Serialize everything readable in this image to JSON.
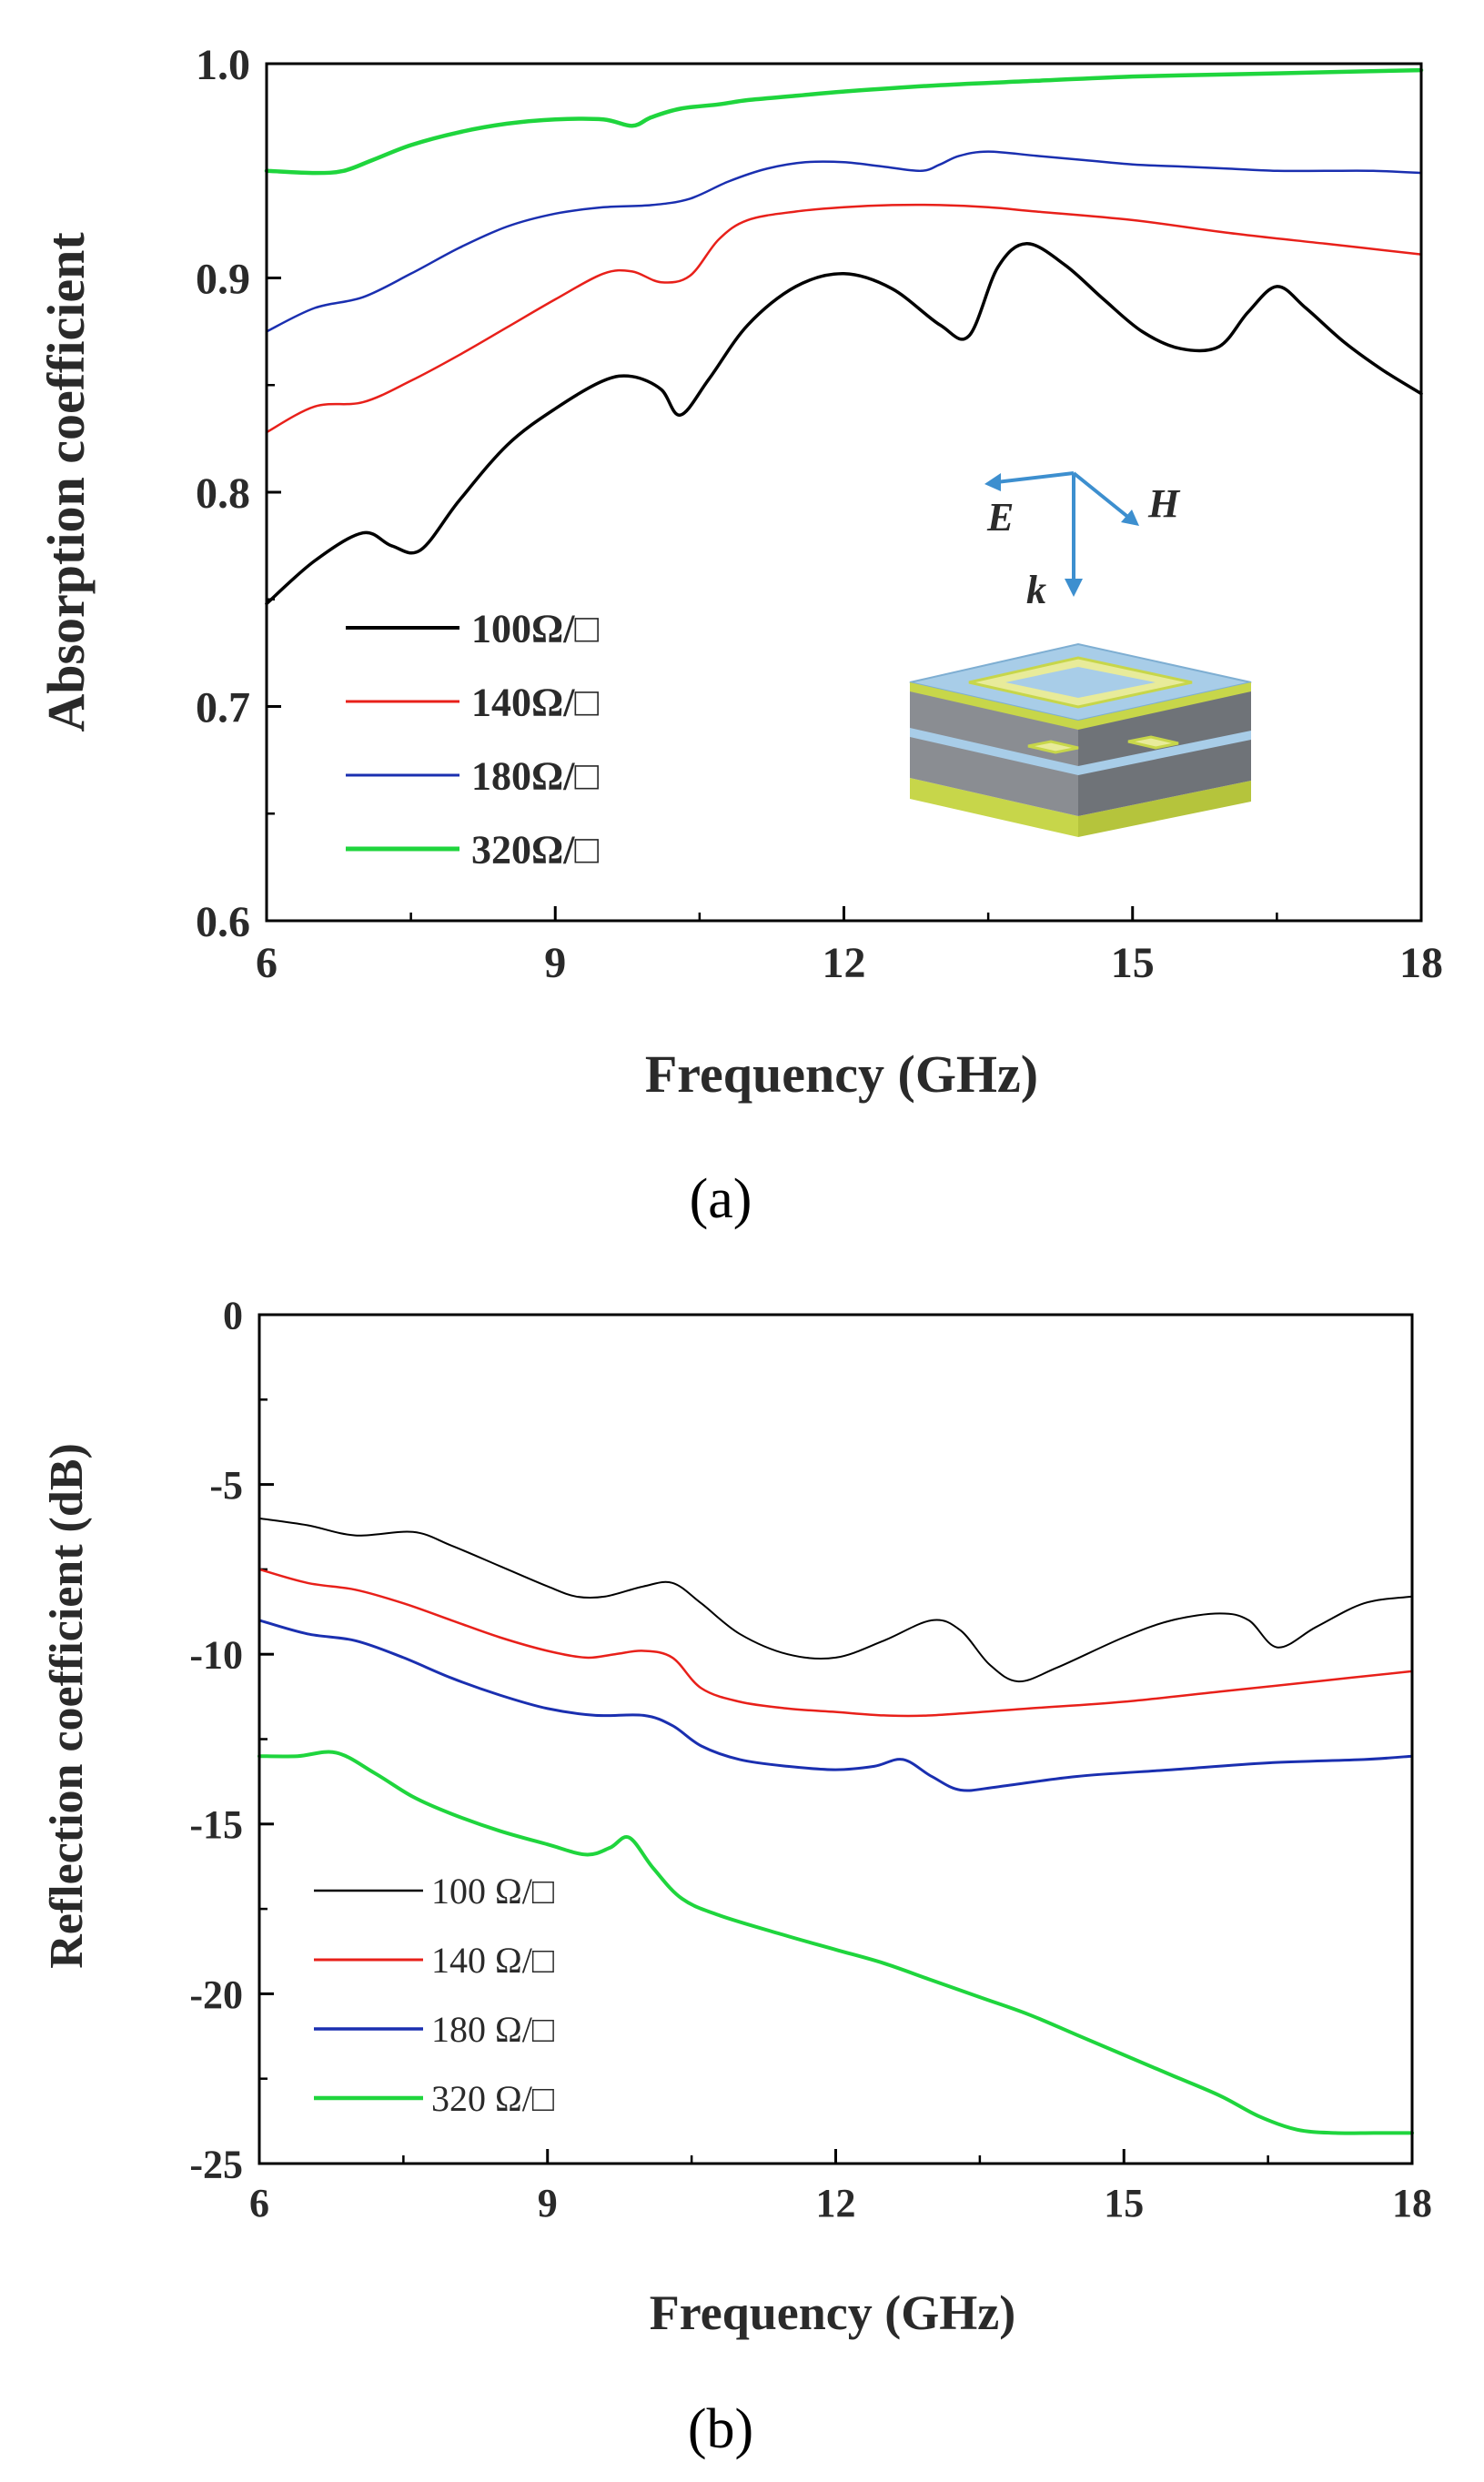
{
  "chart_data": [
    {
      "type": "line",
      "panel_label": "(a)",
      "title": "",
      "xlabel": "Frequency (GHz)",
      "ylabel": "Absorption coefficient",
      "xlim": [
        6,
        18
      ],
      "ylim": [
        0.6,
        1.0
      ],
      "xticks": [
        "6",
        "9",
        "12",
        "15",
        "18"
      ],
      "yticks": [
        "0.6",
        "0.7",
        "0.8",
        "0.9",
        "1.0"
      ],
      "legend_position": "bottom-left",
      "series": [
        {
          "name": "100Ω/□",
          "color": "#000000",
          "x": [
            6,
            6.5,
            7,
            7.3,
            7.6,
            8,
            8.5,
            9,
            9.5,
            9.8,
            10.1,
            10.3,
            10.6,
            11,
            11.5,
            12,
            12.5,
            13,
            13.3,
            13.6,
            13.9,
            14.3,
            14.7,
            15.1,
            15.5,
            15.9,
            16.2,
            16.5,
            16.8,
            17.2,
            17.6,
            18
          ],
          "values": [
            0.748,
            0.768,
            0.781,
            0.775,
            0.773,
            0.796,
            0.822,
            0.839,
            0.852,
            0.854,
            0.848,
            0.836,
            0.853,
            0.878,
            0.896,
            0.902,
            0.895,
            0.878,
            0.873,
            0.905,
            0.916,
            0.906,
            0.89,
            0.875,
            0.867,
            0.868,
            0.884,
            0.896,
            0.886,
            0.87,
            0.857,
            0.846
          ]
        },
        {
          "name": "140Ω/□",
          "color": "#e8201a",
          "x": [
            6,
            6.5,
            7,
            7.5,
            8,
            8.5,
            9,
            9.5,
            9.8,
            10.1,
            10.4,
            10.7,
            11,
            11.5,
            12,
            12.5,
            13,
            13.5,
            14,
            15,
            16,
            17,
            18
          ],
          "values": [
            0.828,
            0.84,
            0.842,
            0.852,
            0.864,
            0.877,
            0.89,
            0.902,
            0.903,
            0.898,
            0.901,
            0.918,
            0.927,
            0.931,
            0.933,
            0.934,
            0.934,
            0.933,
            0.931,
            0.927,
            0.921,
            0.916,
            0.911
          ]
        },
        {
          "name": "180Ω/□",
          "color": "#1a2fb0",
          "x": [
            6,
            6.5,
            7,
            7.5,
            8,
            8.5,
            9,
            9.5,
            10,
            10.4,
            10.8,
            11.2,
            11.6,
            12,
            12.4,
            12.8,
            13,
            13.2,
            13.5,
            14,
            14.5,
            15,
            15.5,
            16,
            16.5,
            17,
            17.5,
            18
          ],
          "values": [
            0.875,
            0.886,
            0.891,
            0.902,
            0.914,
            0.924,
            0.93,
            0.933,
            0.934,
            0.937,
            0.945,
            0.951,
            0.954,
            0.954,
            0.952,
            0.95,
            0.953,
            0.957,
            0.959,
            0.957,
            0.955,
            0.953,
            0.952,
            0.951,
            0.95,
            0.95,
            0.95,
            0.949
          ]
        },
        {
          "name": "320Ω/□",
          "color": "#1fd53d",
          "x": [
            6,
            6.5,
            6.8,
            7.1,
            7.5,
            8,
            8.5,
            9,
            9.5,
            9.8,
            10,
            10.3,
            10.7,
            11,
            11.5,
            12,
            13,
            14,
            15,
            16,
            17,
            18
          ],
          "values": [
            0.95,
            0.949,
            0.95,
            0.955,
            0.962,
            0.968,
            0.972,
            0.974,
            0.974,
            0.971,
            0.975,
            0.979,
            0.981,
            0.983,
            0.985,
            0.987,
            0.99,
            0.992,
            0.994,
            0.995,
            0.996,
            0.997
          ]
        }
      ],
      "inset": {
        "type": "diagram",
        "axes_labels": [
          "E",
          "H",
          "k"
        ]
      }
    },
    {
      "type": "line",
      "panel_label": "(b)",
      "title": "",
      "xlabel": "Frequency (GHz)",
      "ylabel": "Reflection coefficient (dB)",
      "xlim": [
        6,
        18
      ],
      "ylim": [
        -25,
        0
      ],
      "xticks": [
        "6",
        "9",
        "12",
        "15",
        "18"
      ],
      "yticks": [
        "0",
        "-5",
        "-10",
        "-15",
        "-20",
        "-25"
      ],
      "legend_position": "bottom-left",
      "series": [
        {
          "name": "100 Ω/□",
          "color": "#000000",
          "x": [
            6,
            6.5,
            7,
            7.6,
            8,
            8.5,
            9,
            9.3,
            9.6,
            10,
            10.3,
            10.6,
            11,
            11.5,
            12,
            12.5,
            13,
            13.3,
            13.6,
            13.9,
            14.3,
            15,
            15.5,
            16,
            16.3,
            16.6,
            17,
            17.5,
            18
          ],
          "values": [
            -6.0,
            -6.2,
            -6.5,
            -6.4,
            -6.8,
            -7.4,
            -8.0,
            -8.3,
            -8.3,
            -8.0,
            -7.9,
            -8.5,
            -9.4,
            -10.0,
            -10.1,
            -9.6,
            -9.0,
            -9.3,
            -10.3,
            -10.8,
            -10.4,
            -9.5,
            -9.0,
            -8.8,
            -9.0,
            -9.8,
            -9.2,
            -8.5,
            -8.3
          ]
        },
        {
          "name": "140 Ω/□",
          "color": "#e8201a",
          "x": [
            6,
            6.5,
            7,
            7.5,
            8,
            8.5,
            9,
            9.4,
            9.7,
            10,
            10.3,
            10.6,
            11,
            11.5,
            12,
            12.5,
            13,
            14,
            15,
            16,
            17,
            18
          ],
          "values": [
            -7.5,
            -7.9,
            -8.1,
            -8.5,
            -9.0,
            -9.5,
            -9.9,
            -10.1,
            -10.0,
            -9.9,
            -10.1,
            -11.0,
            -11.4,
            -11.6,
            -11.7,
            -11.8,
            -11.8,
            -11.6,
            -11.4,
            -11.1,
            -10.8,
            -10.5
          ]
        },
        {
          "name": "180 Ω/□",
          "color": "#1a2fb0",
          "x": [
            6,
            6.5,
            7,
            7.5,
            8,
            8.5,
            9,
            9.5,
            10,
            10.3,
            10.6,
            11,
            11.5,
            12,
            12.4,
            12.7,
            13,
            13.3,
            13.7,
            14.5,
            15.5,
            16.5,
            17.5,
            18
          ],
          "values": [
            -9.0,
            -9.4,
            -9.6,
            -10.1,
            -10.7,
            -11.2,
            -11.6,
            -11.8,
            -11.8,
            -12.1,
            -12.7,
            -13.1,
            -13.3,
            -13.4,
            -13.3,
            -13.1,
            -13.6,
            -14.0,
            -13.9,
            -13.6,
            -13.4,
            -13.2,
            -13.1,
            -13.0
          ]
        },
        {
          "name": "320 Ω/□",
          "color": "#1fd53d",
          "x": [
            6,
            6.4,
            6.8,
            7.2,
            7.6,
            8,
            8.5,
            9,
            9.4,
            9.65,
            9.85,
            10.1,
            10.4,
            10.8,
            11.5,
            12,
            12.5,
            13,
            13.5,
            14,
            14.5,
            15,
            15.5,
            16,
            16.4,
            16.8,
            17.2,
            17.6,
            18
          ],
          "values": [
            -13.0,
            -13.0,
            -12.9,
            -13.5,
            -14.2,
            -14.7,
            -15.2,
            -15.6,
            -15.9,
            -15.7,
            -15.4,
            -16.3,
            -17.2,
            -17.7,
            -18.3,
            -18.7,
            -19.1,
            -19.6,
            -20.1,
            -20.6,
            -21.2,
            -21.8,
            -22.4,
            -23.0,
            -23.6,
            -24.0,
            -24.1,
            -24.1,
            -24.1
          ]
        }
      ]
    }
  ]
}
